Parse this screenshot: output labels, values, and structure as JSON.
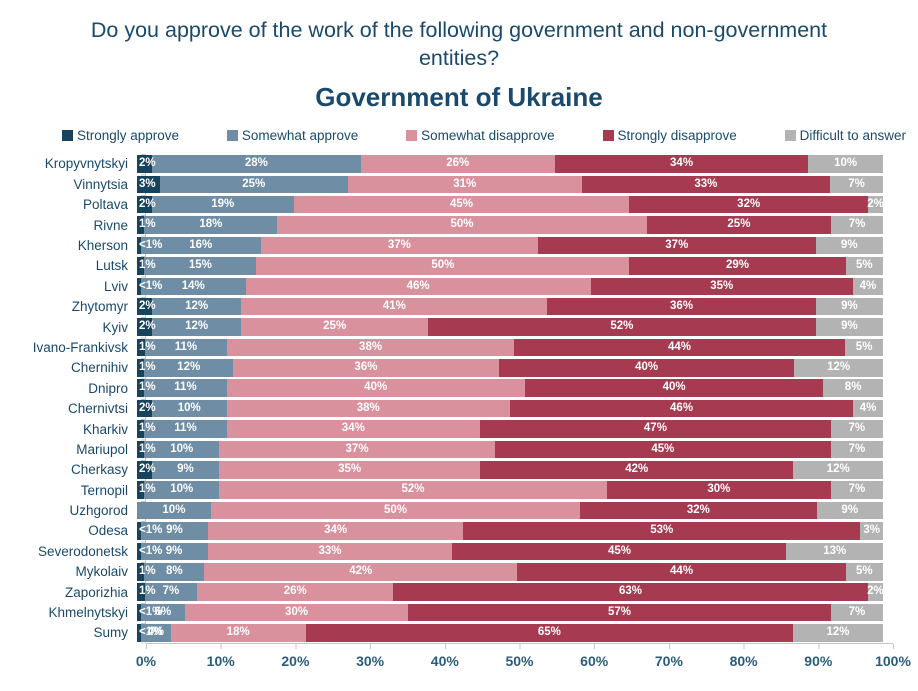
{
  "header": {
    "title": "Do you approve of the work of the following government and non-government entities?",
    "subtitle": "Government of Ukraine"
  },
  "colors": {
    "text_navy": "#1a4a6b",
    "axis_label_blue": "#2a5d7c",
    "axis_line_gray": "#c6c6c6",
    "segment_label_white": "#ffffff"
  },
  "chart_data": {
    "type": "bar",
    "stacked": true,
    "orientation": "horizontal",
    "title": "Government of Ukraine",
    "legend_position": "top",
    "xlim": [
      0,
      100
    ],
    "x_ticks": [
      "0%",
      "10%",
      "20%",
      "30%",
      "40%",
      "50%",
      "60%",
      "70%",
      "80%",
      "90%",
      "100%"
    ],
    "categories": [
      "Kropyvnytskyi",
      "Vinnytsia",
      "Poltava",
      "Rivne",
      "Kherson",
      "Lutsk",
      "Lviv",
      "Zhytomyr",
      "Kyiv",
      "Ivano-Frankivsk",
      "Chernihiv",
      "Dnipro",
      "Chernivtsi",
      "Kharkiv",
      "Mariupol",
      "Cherkasy",
      "Ternopil",
      "Uzhgorod",
      "Odesa",
      "Severodonetsk",
      "Mykolaiv",
      "Zaporizhia",
      "Khmelnytskyi",
      "Sumy"
    ],
    "series": [
      {
        "name": "Strongly approve",
        "color": "#17435c",
        "values": [
          2,
          3,
          2,
          1,
          0.5,
          1,
          0.5,
          2,
          2,
          1,
          1,
          1,
          2,
          1,
          1,
          2,
          1,
          null,
          0.5,
          0.5,
          1,
          1,
          0.5,
          0.5
        ],
        "labels": [
          "2%",
          "3%",
          "2%",
          "1%",
          "<1%",
          "1%",
          "<1%",
          "2%",
          "2%",
          "1%",
          "1%",
          "1%",
          "2%",
          "1%",
          "1%",
          "2%",
          "1%",
          "",
          "<1%",
          "<1%",
          "1%",
          "1%",
          "<1%",
          "<1%"
        ]
      },
      {
        "name": "Somewhat approve",
        "color": "#6f8da4",
        "values": [
          28,
          25,
          19,
          18,
          16,
          15,
          14,
          12,
          12,
          11,
          12,
          11,
          10,
          11,
          10,
          9,
          10,
          10,
          9,
          9,
          8,
          7,
          6,
          4
        ]
      },
      {
        "name": "Somewhat disapprove",
        "color": "#d9919e",
        "values": [
          26,
          31,
          45,
          50,
          37,
          50,
          46,
          41,
          25,
          38,
          36,
          40,
          38,
          34,
          37,
          35,
          52,
          50,
          34,
          33,
          42,
          26,
          30,
          18
        ]
      },
      {
        "name": "Strongly disapprove",
        "color": "#a63a50",
        "values": [
          34,
          33,
          32,
          25,
          37,
          29,
          35,
          36,
          52,
          44,
          40,
          40,
          46,
          47,
          45,
          42,
          30,
          32,
          53,
          45,
          44,
          63,
          57,
          65
        ]
      },
      {
        "name": "Difficult to answer",
        "color": "#b3b3b3",
        "values": [
          10,
          7,
          2,
          7,
          9,
          5,
          4,
          9,
          9,
          5,
          12,
          8,
          4,
          7,
          7,
          12,
          7,
          9,
          3,
          13,
          5,
          2,
          7,
          12
        ]
      }
    ]
  }
}
